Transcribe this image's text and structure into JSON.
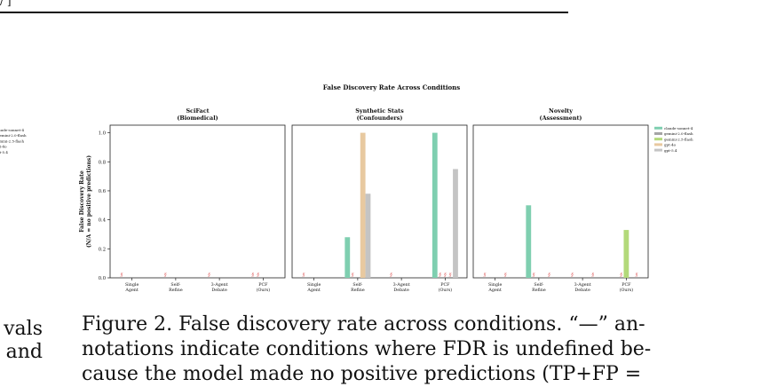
{
  "header": {
    "clipped_text": "/ ]"
  },
  "left_margin_text": {
    "lines": [
      "vals",
      "and"
    ],
    "legend_fragments": [
      "laude-sonnet-4",
      "gemini-2.0-flash",
      "emini-2.5-flash",
      "pt-4o",
      "pt-5.4"
    ]
  },
  "caption": {
    "line1": "Figure 2.  False discovery rate across conditions.  “—” an-",
    "line2": "notations indicate conditions where FDR is undefined be-",
    "line3": "cause the model made no positive predictions (TP+FP ="
  },
  "chart_data": {
    "type": "bar",
    "title": "False Discovery Rate Across Conditions",
    "ylabel": "False Discovery Rate",
    "ylabel2": "(N/A = no positive predictions)",
    "ylim": [
      0,
      1.0
    ],
    "yticks": [
      "0.0",
      "0.2",
      "0.4",
      "0.6",
      "0.8",
      "1.0"
    ],
    "grid": false,
    "legend_placement": "right",
    "categories": [
      {
        "line1": "Single",
        "line2": "Agent"
      },
      {
        "line1": "Self-",
        "line2": "Refine"
      },
      {
        "line1": "3-Agent",
        "line2": "Debate"
      },
      {
        "line1": "PCF",
        "line2": "(Ours)"
      }
    ],
    "series": [
      {
        "name": "claude-sonnet-4",
        "color": "#7fcfb0"
      },
      {
        "name": "gemini-2.0-flash",
        "color": "#a5a5a5"
      },
      {
        "name": "gemini-2.5-flash",
        "color": "#b3d97a"
      },
      {
        "name": "gpt-4o",
        "color": "#e8c9a0"
      },
      {
        "name": "gpt-5.4",
        "color": "#c4c4c4"
      }
    ],
    "na_marker": "§",
    "na_color": "#e06666",
    "panels": [
      {
        "title_line1": "SciFact",
        "title_line2": "(Biomedical)",
        "values": [
          [
            null,
            null,
            null,
            null,
            null
          ],
          [
            null,
            null,
            null,
            null,
            null
          ],
          [
            null,
            null,
            null,
            null,
            null
          ],
          [
            null,
            null,
            null,
            null,
            null
          ]
        ],
        "na_slots": [
          [
            0
          ],
          [
            0
          ],
          [
            0
          ],
          [
            0,
            1
          ]
        ]
      },
      {
        "title_line1": "Synthetic Stats",
        "title_line2": "(Confounders)",
        "values": [
          [
            null,
            null,
            null,
            null,
            null
          ],
          [
            0.28,
            null,
            null,
            1.0,
            0.58
          ],
          [
            null,
            null,
            null,
            null,
            null
          ],
          [
            1.0,
            null,
            null,
            null,
            0.75
          ]
        ],
        "na_slots": [
          [
            0
          ],
          [
            1
          ],
          [
            0
          ],
          [
            1,
            2,
            3
          ]
        ]
      },
      {
        "title_line1": "Novelty",
        "title_line2": "(Assessment)",
        "values": [
          [
            null,
            null,
            null,
            null,
            null
          ],
          [
            0.5,
            null,
            null,
            null,
            null
          ],
          [
            null,
            null,
            null,
            null,
            null
          ],
          [
            null,
            null,
            0.33,
            null,
            null
          ]
        ],
        "na_slots": [
          [
            0,
            4
          ],
          [
            1,
            4
          ],
          [
            0,
            4
          ],
          [
            1,
            4
          ]
        ]
      }
    ]
  }
}
